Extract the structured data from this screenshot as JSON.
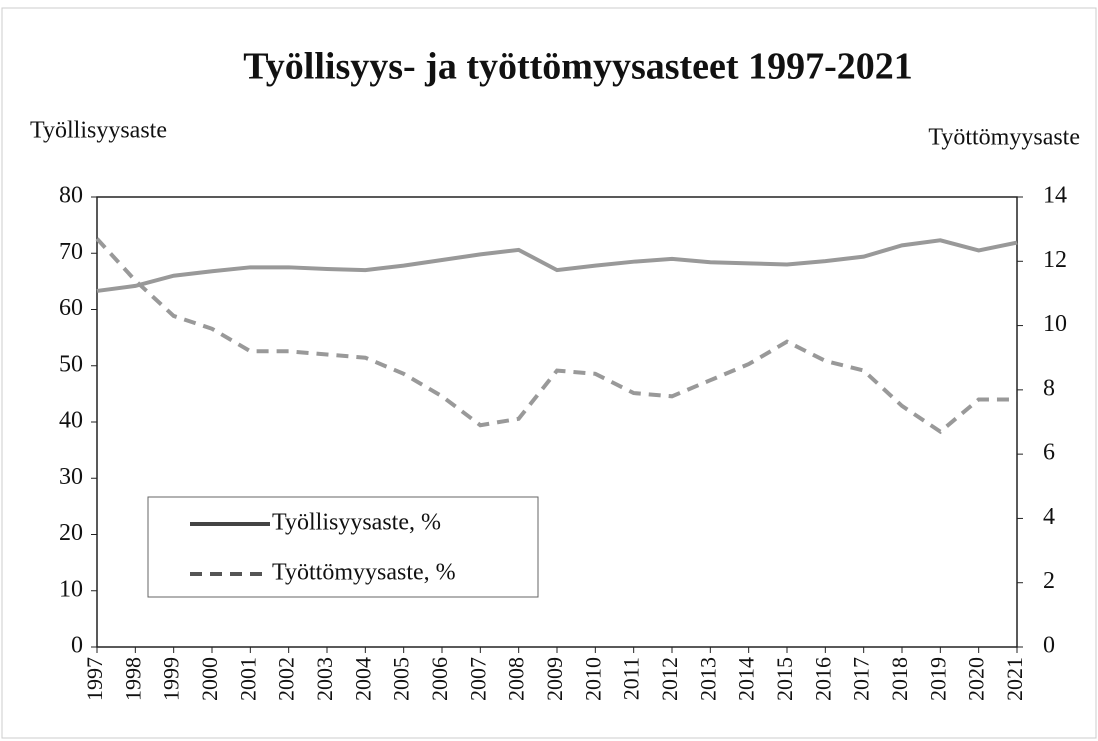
{
  "chart_data": {
    "type": "line",
    "title": "Työllisyys- ja työttömyysasteet 1997-2021",
    "ylabel": "Työllisyysaste",
    "y2label": "Työttömyysaste",
    "categories": [
      "1997",
      "1998",
      "1999",
      "2000",
      "2001",
      "2002",
      "2003",
      "2004",
      "2005",
      "2006",
      "2007",
      "2008",
      "2009",
      "2010",
      "2011",
      "2012",
      "2013",
      "2014",
      "2015",
      "2016",
      "2017",
      "2018",
      "2019",
      "2020",
      "2021"
    ],
    "series": [
      {
        "name": "Työllisyysaste, %",
        "color": "#999999",
        "style": "solid",
        "values": [
          63.3,
          64.2,
          66,
          66.8,
          67.5,
          67.5,
          67.2,
          67,
          67.8,
          68.8,
          69.8,
          70.6,
          67,
          67.8,
          68.5,
          69,
          68.4,
          68.2,
          68,
          68.6,
          69.4,
          71.4,
          72.3,
          70.5,
          71.9
        ]
      },
      {
        "name": "Työttömyysaste, %",
        "color": "#999999",
        "style": "dashed",
        "axis": "y2",
        "values": [
          12.7,
          11.4,
          10.3,
          9.9,
          9.2,
          9.2,
          9.1,
          9,
          8.5,
          7.8,
          6.9,
          7.1,
          8.6,
          8.5,
          7.9,
          7.8,
          8.3,
          8.8,
          9.5,
          8.9,
          8.6,
          7.5,
          6.7,
          7.7,
          7.7
        ]
      }
    ],
    "ylim": [
      0,
      80
    ],
    "yticks": [
      0,
      10,
      20,
      30,
      40,
      50,
      60,
      70,
      80
    ],
    "y2lim": [
      0,
      14
    ],
    "y2ticks": [
      0,
      2,
      4,
      6,
      8,
      10,
      12,
      14
    ],
    "legend": "lower left"
  }
}
